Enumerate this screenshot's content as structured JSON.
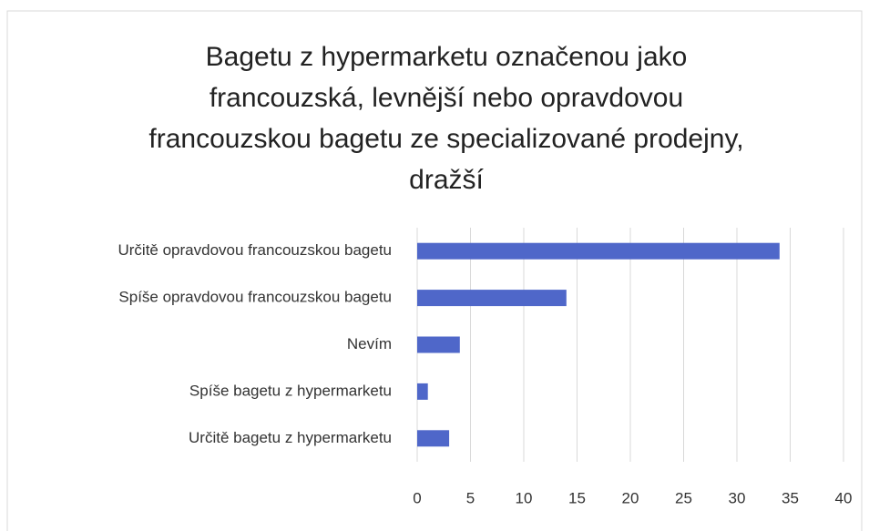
{
  "chart_data": {
    "type": "bar",
    "orientation": "horizontal",
    "title": "Bagetu z hypermarketu označenou jako francouzská, levnější nebo opravdovou francouzskou bagetu ze specializované prodejny, dražší",
    "categories": [
      "Určitě opravdovou francouzskou bagetu",
      "Spíše opravdovou francouzskou bagetu",
      "Nevím",
      "Spíše bagetu z hypermarketu",
      "Určitě bagetu z hypermarketu"
    ],
    "values": [
      34,
      14,
      4,
      1,
      3
    ],
    "color": "#4f67c9",
    "xlim": [
      0,
      40
    ],
    "xticks": [
      0,
      5,
      10,
      15,
      20,
      25,
      30,
      35,
      40
    ],
    "grid": true
  }
}
